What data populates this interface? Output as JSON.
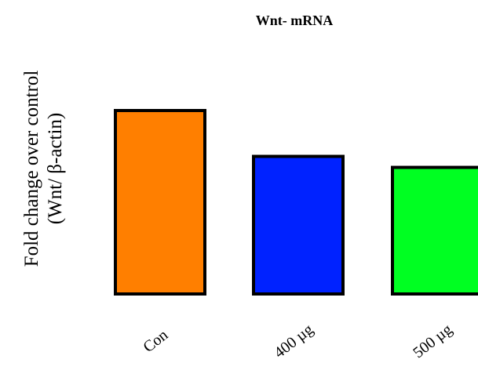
{
  "chart_data": {
    "type": "bar",
    "title": "Wnt- mRNA",
    "ylabel_line1": "Fold change over control",
    "ylabel_line2": "(Wnt/ β-actin)",
    "xlabel": "",
    "categories": [
      "Con",
      "400 µg",
      "500 µg"
    ],
    "values": [
      1.0,
      0.75,
      0.69
    ],
    "colors": [
      "#ff7f00",
      "#0022ff",
      "#00ff22"
    ],
    "edge_color": "#000000",
    "ylim": [
      0,
      1.0
    ],
    "grid": false,
    "y_axis_ticks_shown": false
  }
}
